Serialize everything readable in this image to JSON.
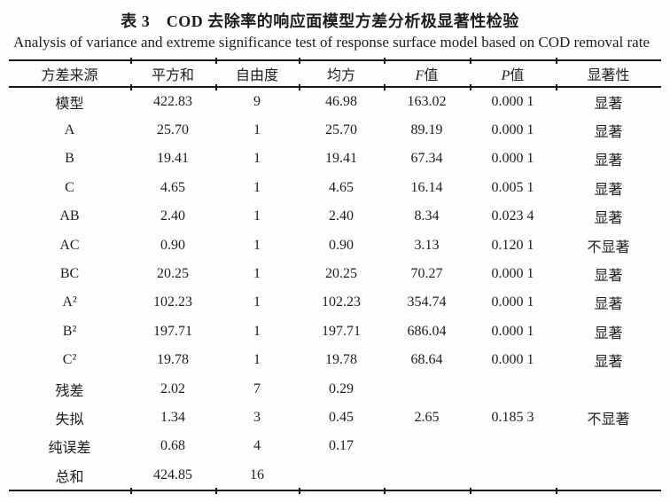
{
  "page": {
    "title_zh": "表 3　COD 去除率的响应面模型方差分析极显著性检验",
    "title_en": "Analysis of variance and extreme significance test of response surface model based on COD removal rate"
  },
  "table": {
    "headers": [
      "方差来源",
      "平方和",
      "自由度",
      "均方",
      "F值",
      "P值",
      "显著性"
    ],
    "rows": [
      [
        "模型",
        "422.83",
        "9",
        "46.98",
        "163.02",
        "0.000 1",
        "显著"
      ],
      [
        "A",
        "25.70",
        "1",
        "25.70",
        "89.19",
        "0.000 1",
        "显著"
      ],
      [
        "B",
        "19.41",
        "1",
        "19.41",
        "67.34",
        "0.000 1",
        "显著"
      ],
      [
        "C",
        "4.65",
        "1",
        "4.65",
        "16.14",
        "0.005 1",
        "显著"
      ],
      [
        "AB",
        "2.40",
        "1",
        "2.40",
        "8.34",
        "0.023 4",
        "显著"
      ],
      [
        "AC",
        "0.90",
        "1",
        "0.90",
        "3.13",
        "0.120 1",
        "不显著"
      ],
      [
        "BC",
        "20.25",
        "1",
        "20.25",
        "70.27",
        "0.000 1",
        "显著"
      ],
      [
        "A²",
        "102.23",
        "1",
        "102.23",
        "354.74",
        "0.000 1",
        "显著"
      ],
      [
        "B²",
        "197.71",
        "1",
        "197.71",
        "686.04",
        "0.000 1",
        "显著"
      ],
      [
        "C²",
        "19.78",
        "1",
        "19.78",
        "68.64",
        "0.000 1",
        "显著"
      ],
      [
        "残差",
        "2.02",
        "7",
        "0.29",
        "",
        "",
        ""
      ],
      [
        "失拟",
        "1.34",
        "3",
        "0.45",
        "2.65",
        "0.185 3",
        "不显著"
      ],
      [
        "纯误差",
        "0.68",
        "4",
        "0.17",
        "",
        "",
        ""
      ],
      [
        "总和",
        "424.85",
        "16",
        "",
        "",
        "",
        ""
      ]
    ]
  }
}
